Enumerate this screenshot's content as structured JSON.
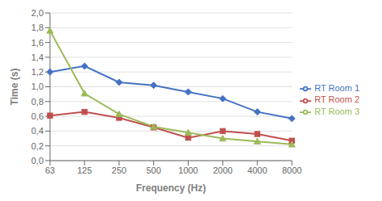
{
  "chart_data": {
    "type": "line",
    "x_label": "Frequency (Hz)",
    "y_label": "Time (s)",
    "categories": [
      "63",
      "125",
      "250",
      "500",
      "1000",
      "2000",
      "4000",
      "8000"
    ],
    "series": [
      {
        "name": "RT Room 1",
        "color": "#4472C4",
        "marker": "diamond",
        "values": [
          1.2,
          1.28,
          1.06,
          1.02,
          0.93,
          0.84,
          0.66,
          0.57
        ]
      },
      {
        "name": "RT Room 2",
        "color": "#C0504D",
        "marker": "square",
        "values": [
          0.61,
          0.66,
          0.58,
          0.45,
          0.31,
          0.4,
          0.36,
          0.27
        ]
      },
      {
        "name": "RT Room 3",
        "color": "#9BBB59",
        "marker": "triangle",
        "values": [
          1.76,
          0.91,
          0.63,
          0.46,
          0.38,
          0.3,
          0.26,
          0.22
        ]
      }
    ],
    "ylim": [
      0.0,
      2.0
    ],
    "yticks": [
      {
        "value": 0.0,
        "label": "0,0"
      },
      {
        "value": 0.2,
        "label": "0,2"
      },
      {
        "value": 0.4,
        "label": "0,4"
      },
      {
        "value": 0.6,
        "label": "0,6"
      },
      {
        "value": 0.8,
        "label": "0,8"
      },
      {
        "value": 1.0,
        "label": "1,0"
      },
      {
        "value": 1.2,
        "label": "1,2"
      },
      {
        "value": 1.4,
        "label": "1,4"
      },
      {
        "value": 1.6,
        "label": "1,6"
      },
      {
        "value": 1.8,
        "label": "1,8"
      },
      {
        "value": 2.0,
        "label": "2,0"
      }
    ],
    "grid": true,
    "legend": "right"
  }
}
